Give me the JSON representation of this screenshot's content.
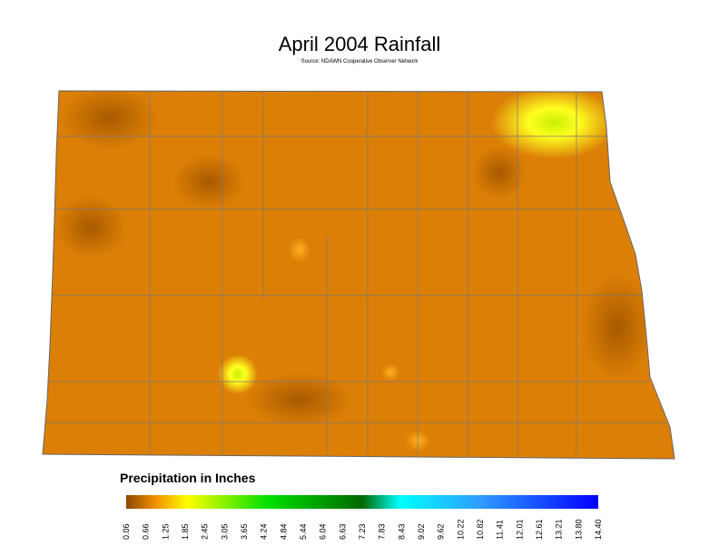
{
  "title": "April 2004 Rainfall",
  "source": "Source: NDAWN Cooperative Observer Network",
  "legend": {
    "title": "Precipitation in Inches",
    "ticks": [
      "0.06",
      "0.66",
      "1.25",
      "1.85",
      "2.45",
      "3.05",
      "3.65",
      "4.24",
      "4.84",
      "5.44",
      "6.04",
      "6.63",
      "7.23",
      "7.83",
      "8.43",
      "9.02",
      "9.62",
      "10.22",
      "10.82",
      "11.41",
      "12.01",
      "12.61",
      "13.21",
      "13.80",
      "14.40"
    ]
  }
}
